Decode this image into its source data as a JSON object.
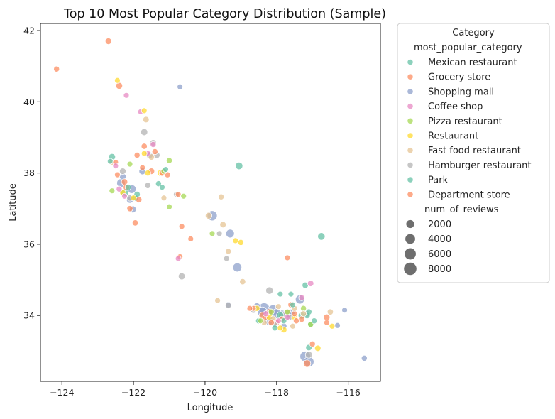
{
  "chart_data": {
    "type": "scatter",
    "title": "Top 10 Most Popular Category Distribution (Sample)",
    "xlabel": "Longitude",
    "ylabel": "Latitude",
    "xlim": [
      -124.6,
      -115.1
    ],
    "ylim": [
      32.15,
      42.2
    ],
    "xticks": [
      -124,
      -122,
      -120,
      -118,
      -116
    ],
    "xtick_labels": [
      "−124",
      "−122",
      "−120",
      "−118",
      "−116"
    ],
    "yticks": [
      34,
      36,
      38,
      40,
      42
    ],
    "ytick_labels": [
      "34",
      "36",
      "38",
      "40",
      "42"
    ],
    "grid": false,
    "legend": {
      "title": "Category",
      "placement": "outside-right",
      "hue_title": "most_popular_category",
      "size_title": "num_of_reviews",
      "size_values": [
        2000,
        4000,
        6000,
        8000
      ],
      "size_labels": [
        "2000",
        "4000",
        "6000",
        "8000"
      ]
    },
    "series": [
      {
        "name": "Mexican restaurant",
        "color": "#66c2a5",
        "points": [
          [
            -122.6,
            38.45,
            1200
          ],
          [
            -119.05,
            38.2,
            1600
          ],
          [
            -116.75,
            36.22,
            1600
          ],
          [
            -122.25,
            37.45,
            2000
          ],
          [
            -121.95,
            37.3,
            1000
          ],
          [
            -117.2,
            34.85,
            800
          ],
          [
            -117.05,
            33.75,
            900
          ],
          [
            -117.1,
            33.1,
            800
          ],
          [
            -117.9,
            34.0,
            1500
          ],
          [
            -117.3,
            34.0,
            1200
          ],
          [
            -122.65,
            38.33,
            500
          ],
          [
            -121.3,
            37.7,
            600
          ],
          [
            -117.9,
            34.6,
            500
          ],
          [
            -118.05,
            33.65,
            600
          ],
          [
            -117.6,
            34.6,
            500
          ],
          [
            -121.2,
            37.6,
            500
          ],
          [
            -117.1,
            34.1,
            700
          ]
        ]
      },
      {
        "name": "Grocery store",
        "color": "#fc8d62",
        "points": [
          [
            -122.7,
            41.7,
            900
          ],
          [
            -124.15,
            40.92,
            600
          ],
          [
            -122.4,
            40.45,
            1100
          ],
          [
            -121.5,
            38.05,
            900
          ],
          [
            -121.2,
            38.0,
            700
          ],
          [
            -121.95,
            36.6,
            700
          ],
          [
            -120.4,
            36.15,
            500
          ],
          [
            -118.2,
            34.1,
            900
          ],
          [
            -117.7,
            35.62,
            500
          ],
          [
            -117.15,
            32.65,
            1500
          ],
          [
            -116.6,
            33.95,
            900
          ],
          [
            -121.9,
            38.5,
            600
          ],
          [
            -122.2,
            37.6,
            800
          ],
          [
            -118.4,
            34.0,
            900
          ],
          [
            -117.3,
            33.9,
            800
          ],
          [
            -120.75,
            37.4,
            500
          ],
          [
            -122.1,
            37.0,
            700
          ],
          [
            -118.0,
            33.8,
            700
          ],
          [
            -116.6,
            33.8,
            500
          ],
          [
            -121.4,
            38.6,
            600
          ],
          [
            -122.5,
            38.3,
            500
          ],
          [
            -117.85,
            33.9,
            600
          ],
          [
            -118.65,
            34.2,
            500
          ],
          [
            -117.5,
            34.05,
            600
          ],
          [
            -120.7,
            35.65,
            500
          ],
          [
            -121.75,
            38.15,
            500
          ],
          [
            -118.75,
            34.2,
            500
          ]
        ]
      },
      {
        "name": "Shopping mall",
        "color": "#8da0cb",
        "points": [
          [
            -122.35,
            37.72,
            2500
          ],
          [
            -122.05,
            37.55,
            2700
          ],
          [
            -119.8,
            36.8,
            4200
          ],
          [
            -119.3,
            36.3,
            2500
          ],
          [
            -119.1,
            35.35,
            3000
          ],
          [
            -118.35,
            34.2,
            5500
          ],
          [
            -118.1,
            34.15,
            4800
          ],
          [
            -117.85,
            34.0,
            4800
          ],
          [
            -117.35,
            34.45,
            3000
          ],
          [
            -117.2,
            32.85,
            5000
          ],
          [
            -117.1,
            32.7,
            4500
          ],
          [
            -118.2,
            33.85,
            3500
          ],
          [
            -118.0,
            34.05,
            4000
          ],
          [
            -121.55,
            38.5,
            1000
          ],
          [
            -121.75,
            38.05,
            1200
          ],
          [
            -122.3,
            37.9,
            1000
          ],
          [
            -122.1,
            37.25,
            1200
          ],
          [
            -118.4,
            34.1,
            4000
          ],
          [
            -117.6,
            34.05,
            3000
          ],
          [
            -120.7,
            40.42,
            500
          ],
          [
            -116.1,
            34.15,
            500
          ],
          [
            -115.55,
            32.8,
            600
          ],
          [
            -117.8,
            33.7,
            800
          ],
          [
            -119.35,
            34.3,
            700
          ],
          [
            -118.55,
            34.25,
            1500
          ],
          [
            -116.3,
            33.72,
            500
          ],
          [
            -117.7,
            34.05,
            2500
          ],
          [
            -122.02,
            36.98,
            1200
          ]
        ]
      },
      {
        "name": "Coffee shop",
        "color": "#e78ac3",
        "points": [
          [
            -122.2,
            40.18,
            500
          ],
          [
            -121.8,
            39.72,
            500
          ],
          [
            -117.05,
            34.9,
            800
          ],
          [
            -121.45,
            38.8,
            600
          ],
          [
            -122.5,
            38.2,
            500
          ],
          [
            -117.3,
            34.5,
            600
          ],
          [
            -117.7,
            33.95,
            500
          ],
          [
            -121.6,
            38.55,
            500
          ],
          [
            -122.4,
            37.55,
            600
          ],
          [
            -118.3,
            34.05,
            600
          ],
          [
            -117.95,
            33.85,
            500
          ],
          [
            -122.25,
            37.35,
            500
          ],
          [
            -120.75,
            35.6,
            500
          ]
        ]
      },
      {
        "name": "Pizza restaurant",
        "color": "#a6d854",
        "points": [
          [
            -121.0,
            38.35,
            600
          ],
          [
            -121.0,
            37.05,
            500
          ],
          [
            -120.6,
            37.35,
            500
          ],
          [
            -119.8,
            36.3,
            500
          ],
          [
            -117.25,
            34.2,
            600
          ],
          [
            -117.05,
            33.75,
            600
          ],
          [
            -122.1,
            38.25,
            500
          ],
          [
            -121.15,
            38.05,
            500
          ],
          [
            -122.6,
            37.5,
            500
          ],
          [
            -118.15,
            34.1,
            600
          ],
          [
            -117.7,
            34.1,
            500
          ],
          [
            -118.45,
            33.85,
            500
          ]
        ]
      },
      {
        "name": "Restaurant",
        "color": "#ffd92f",
        "points": [
          [
            -122.45,
            40.6,
            500
          ],
          [
            -121.7,
            39.75,
            500
          ],
          [
            -121.25,
            38.0,
            800
          ],
          [
            -119.0,
            36.05,
            600
          ],
          [
            -116.85,
            33.08,
            800
          ],
          [
            -117.8,
            33.6,
            800
          ],
          [
            -121.7,
            38.55,
            500
          ],
          [
            -121.6,
            38.0,
            600
          ],
          [
            -122.3,
            37.45,
            700
          ],
          [
            -122.0,
            37.3,
            500
          ],
          [
            -118.2,
            33.95,
            800
          ],
          [
            -117.5,
            33.95,
            700
          ],
          [
            -118.55,
            34.2,
            600
          ],
          [
            -117.9,
            33.65,
            500
          ],
          [
            -116.45,
            33.7,
            500
          ],
          [
            -119.15,
            36.1,
            500
          ]
        ]
      },
      {
        "name": "Fast food restaurant",
        "color": "#e5c494",
        "points": [
          [
            -121.65,
            39.5,
            800
          ],
          [
            -119.55,
            37.33,
            600
          ],
          [
            -119.5,
            36.55,
            800
          ],
          [
            -119.35,
            35.8,
            500
          ],
          [
            -118.95,
            34.95,
            700
          ],
          [
            -116.5,
            34.1,
            700
          ],
          [
            -119.65,
            34.42,
            500
          ],
          [
            -117.25,
            34.05,
            600
          ],
          [
            -117.5,
            34.2,
            600
          ],
          [
            -122.6,
            38.3,
            600
          ],
          [
            -121.5,
            38.45,
            800
          ],
          [
            -119.9,
            36.8,
            1000
          ],
          [
            -121.15,
            37.3,
            500
          ],
          [
            -118.1,
            33.9,
            800
          ],
          [
            -117.7,
            34.1,
            700
          ],
          [
            -117.55,
            33.7,
            500
          ],
          [
            -118.35,
            33.8,
            600
          ],
          [
            -117.95,
            34.25,
            500
          ]
        ]
      },
      {
        "name": "Hamburger restaurant",
        "color": "#b3b3b3",
        "points": [
          [
            -121.7,
            39.15,
            1200
          ],
          [
            -121.45,
            38.85,
            800
          ],
          [
            -121.35,
            38.5,
            900
          ],
          [
            -120.65,
            35.1,
            1200
          ],
          [
            -119.35,
            34.28,
            700
          ],
          [
            -119.4,
            35.6,
            500
          ],
          [
            -120.8,
            37.4,
            600
          ],
          [
            -119.6,
            36.3,
            500
          ],
          [
            -118.2,
            34.7,
            1500
          ],
          [
            -117.85,
            34.0,
            1600
          ],
          [
            -117.1,
            32.9,
            1200
          ],
          [
            -122.3,
            38.05,
            900
          ],
          [
            -121.6,
            37.65,
            700
          ],
          [
            -122.1,
            37.3,
            800
          ],
          [
            -118.65,
            34.15,
            700
          ],
          [
            -117.65,
            33.95,
            900
          ],
          [
            -118.05,
            33.75,
            700
          ],
          [
            -117.15,
            34.05,
            800
          ]
        ]
      },
      {
        "name": "Park",
        "color": "#66c2a5",
        "points": [
          [
            -117.55,
            34.3,
            500
          ],
          [
            -117.15,
            34.0,
            800
          ],
          [
            -116.95,
            33.85,
            600
          ],
          [
            -121.9,
            37.4,
            800
          ],
          [
            -122.15,
            37.6,
            700
          ],
          [
            -118.5,
            33.85,
            700
          ],
          [
            -117.8,
            33.85,
            600
          ],
          [
            -121.1,
            38.1,
            500
          ]
        ]
      },
      {
        "name": "Department store",
        "color": "#fc8d62",
        "points": [
          [
            -121.7,
            38.75,
            700
          ],
          [
            -121.05,
            37.95,
            600
          ],
          [
            -118.3,
            33.95,
            900
          ],
          [
            -117.6,
            34.3,
            700
          ],
          [
            -117.0,
            33.2,
            600
          ],
          [
            -122.25,
            37.75,
            800
          ],
          [
            -121.85,
            37.25,
            700
          ],
          [
            -118.15,
            33.8,
            700
          ],
          [
            -117.45,
            33.85,
            600
          ],
          [
            -120.65,
            36.5,
            500
          ],
          [
            -122.45,
            37.95,
            500
          ]
        ]
      }
    ]
  }
}
